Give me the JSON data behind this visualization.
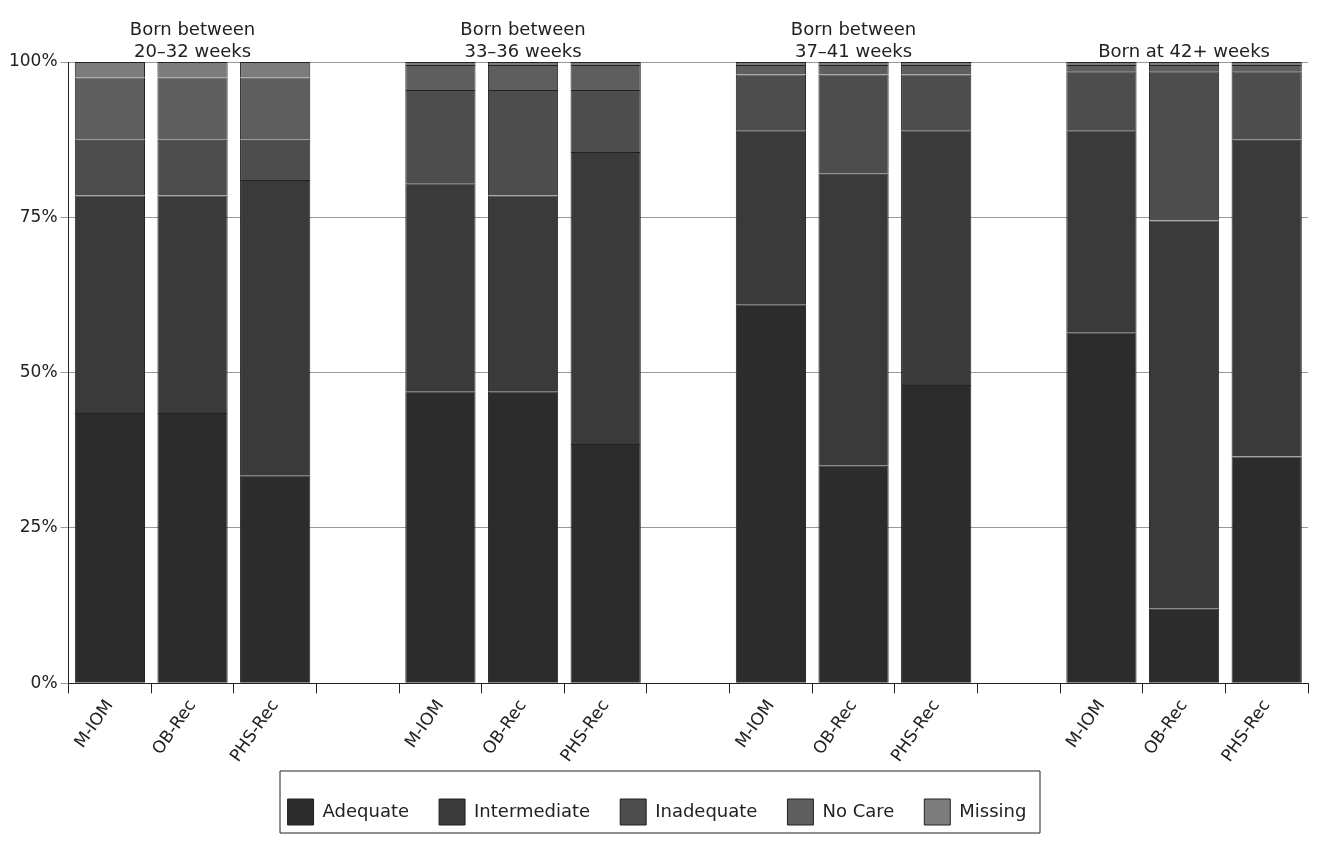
{
  "chart_data": {
    "type": "bar",
    "stacked": true,
    "annotations": [
      "Born between\n20–32 weeks",
      "Born between\n33–36 weeks",
      "Born between\n37–41 weeks",
      "Born at 42+ weeks"
    ],
    "categories": [
      "M-IOM",
      "OB-Rec",
      "PHS-Rec",
      null,
      "M-IOM",
      "OB-Rec",
      "PHS-Rec",
      null,
      "M-IOM",
      "OB-Rec",
      "PHS-Rec",
      null,
      "M-IOM",
      "OB-Rec",
      "PHS-Rec"
    ],
    "series": [
      {
        "name": "Adequate",
        "color": "#2c2c2c",
        "values": [
          43.5,
          43.5,
          33.5,
          null,
          47,
          47,
          38.5,
          null,
          61,
          35,
          48,
          null,
          56.5,
          12,
          36.5
        ]
      },
      {
        "name": "Intermediate",
        "color": "#3a3a3a",
        "values": [
          35,
          35,
          47.5,
          null,
          33.5,
          31.5,
          47,
          null,
          28,
          47,
          41,
          null,
          32.5,
          62.5,
          51
        ]
      },
      {
        "name": "Inadequate",
        "color": "#4d4d4d",
        "values": [
          9,
          9,
          6.5,
          null,
          15,
          17,
          10,
          null,
          9,
          16,
          9,
          null,
          9.5,
          24,
          11
        ]
      },
      {
        "name": "No Care",
        "color": "#5e5e5e",
        "values": [
          10,
          10,
          10,
          null,
          4,
          4,
          4,
          null,
          1.5,
          1.5,
          1.5,
          null,
          1,
          1,
          1
        ]
      },
      {
        "name": "Missing",
        "color": "#7c7c7c",
        "values": [
          2.5,
          2.5,
          2.5,
          null,
          0.5,
          0.5,
          0.5,
          null,
          0.5,
          0.5,
          0.5,
          null,
          0.5,
          0.5,
          0.5
        ]
      }
    ],
    "ylim": [
      0,
      100
    ],
    "yticks": [
      {
        "value": 0,
        "label": "0%"
      },
      {
        "value": 25,
        "label": "25%"
      },
      {
        "value": 50,
        "label": "50%"
      },
      {
        "value": 75,
        "label": "75%"
      },
      {
        "value": 100,
        "label": "100%"
      }
    ],
    "grid": "y",
    "legend": "bottom"
  }
}
